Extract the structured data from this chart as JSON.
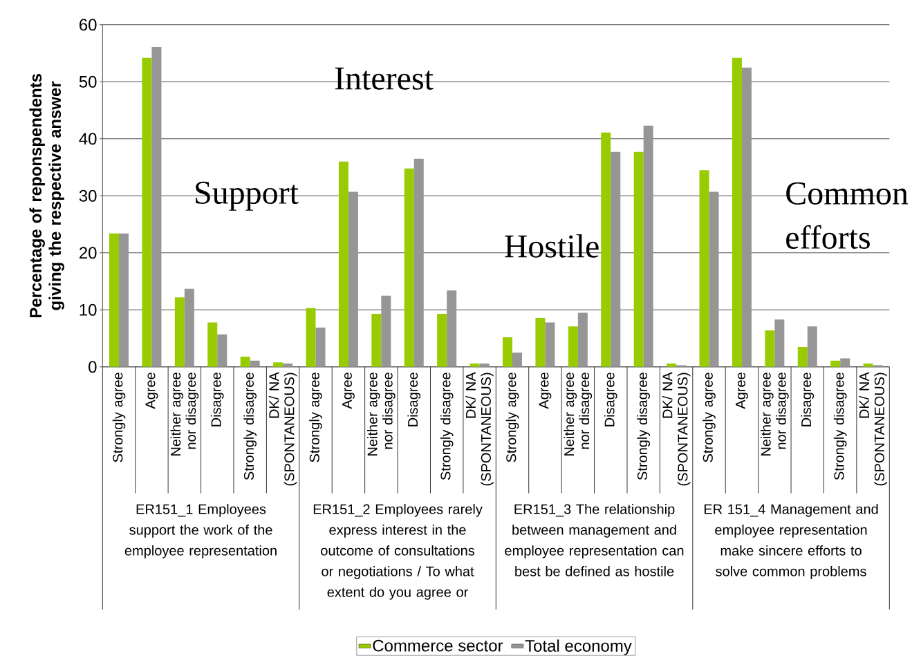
{
  "chart_data": {
    "type": "bar",
    "ylabel": "Percentage of reponspendents giving the respective answer",
    "categories": [
      "Strongly agree",
      "Agree",
      "Neither agree nor disagree",
      "Disagree",
      "Strongly disagree",
      "DK/ NA (SPONTANEOUS)",
      "Strongly agree",
      "Agree",
      "Neither agree nor disagree",
      "Disagree",
      "Strongly disagree",
      "DK/ NA (SPONTANEOUS)",
      "Strongly agree",
      "Agree",
      "Neither agree nor disagree",
      "Disagree",
      "Strongly disagree",
      "DK/ NA (SPONTANEOUS)",
      "Strongly agree",
      "Agree",
      "Neither agree nor disagree",
      "Disagree",
      "Strongly disagree",
      "DK/ NA (SPONTANEOUS)"
    ],
    "series": [
      {
        "name": "Commerce sector",
        "color": "#99cc00",
        "values": [
          23.4,
          54.2,
          12.2,
          7.8,
          1.8,
          0.8,
          10.3,
          36.0,
          9.3,
          34.8,
          9.3,
          0.6,
          5.2,
          8.6,
          7.1,
          41.1,
          37.7,
          0.6,
          34.5,
          54.2,
          6.4,
          3.5,
          1.1,
          0.6
        ]
      },
      {
        "name": "Total economy",
        "color": "#969696",
        "values": [
          23.4,
          56.1,
          13.7,
          5.7,
          1.1,
          0.6,
          6.9,
          30.7,
          12.5,
          36.5,
          13.4,
          0.6,
          2.5,
          7.8,
          9.5,
          37.7,
          42.3,
          0.3,
          30.7,
          52.5,
          8.3,
          7.1,
          1.5,
          0.3
        ]
      }
    ],
    "ylim": [
      0,
      60
    ],
    "yticks": [
      0,
      10,
      20,
      30,
      40,
      50,
      60
    ],
    "grid": "y",
    "legend": "bottom",
    "annotations": [
      "ER151_1 Employees support the work of the employee representation",
      "ER151_2 Employees rarely express interest in the outcome of consultations or negotiations / To what extent do you agree or",
      "ER151_3 The relationship between management and employee representation can best be defined as hostile",
      "ER 151_4 Management and employee representation make sincere efforts to solve common problems",
      "Support",
      "Interest",
      "Hostile",
      "Common efforts"
    ]
  }
}
